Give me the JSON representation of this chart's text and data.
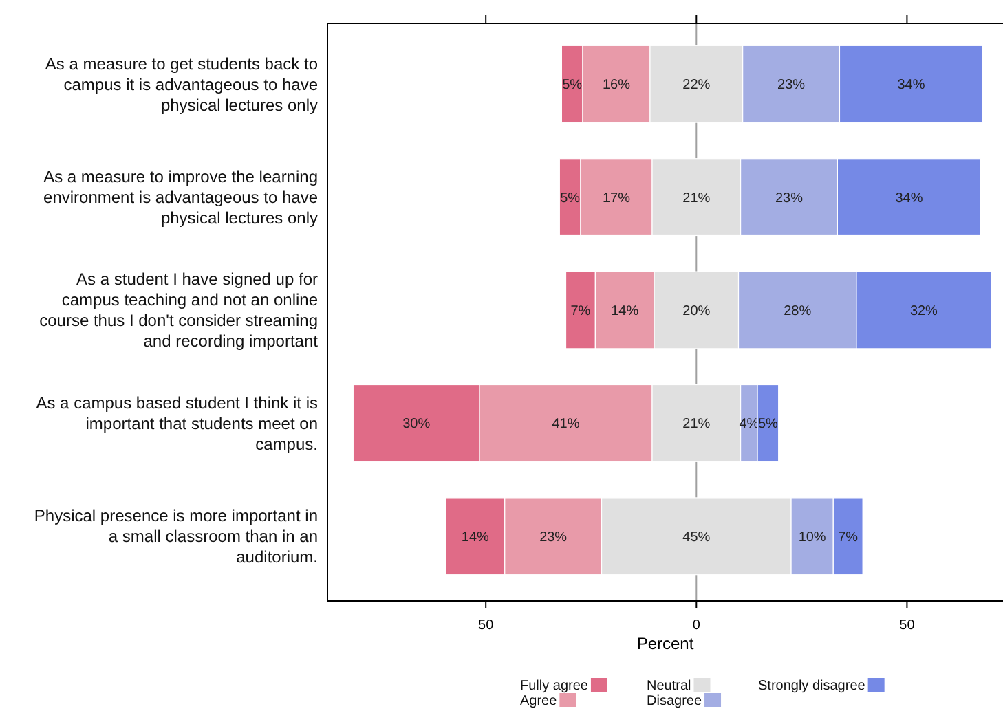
{
  "chart_data": {
    "type": "bar",
    "orientation": "horizontal",
    "xlabel": "Percent",
    "categories": [
      "As a measure to get students back to campus it is advantageous to have physical lectures only",
      "As a measure to improve the learning environment is advantageous to have physical lectures only",
      "As a student I have signed up for campus teaching and not an online course thus I don't consider streaming and recording important",
      "As a campus based student I think it is important that students meet on campus.",
      "Physical presence is more important in a small classroom than in an auditorium."
    ],
    "series": [
      {
        "name": "Fully agree",
        "color": "#e06b87",
        "base": [
          -32,
          -32.5,
          -31,
          -81.5,
          -59.5
        ],
        "values": [
          5,
          5,
          7,
          30,
          14
        ],
        "value_labels": [
          "5%",
          "5%",
          "7%",
          "30%",
          "14%"
        ]
      },
      {
        "name": "Agree",
        "color": "#e89aa9",
        "base": [
          -27,
          -27.5,
          -24,
          -51.5,
          -45.5
        ],
        "values": [
          16,
          17,
          14,
          41,
          23
        ],
        "value_labels": [
          "16%",
          "17%",
          "14%",
          "41%",
          "23%"
        ]
      },
      {
        "name": "Neutral",
        "color": "#e0e0e0",
        "base": [
          -11,
          -10.5,
          -10,
          -10.5,
          -22.5
        ],
        "values": [
          22,
          21,
          20,
          21,
          45
        ],
        "value_labels": [
          "22%",
          "21%",
          "20%",
          "21%",
          "45%"
        ]
      },
      {
        "name": "Disagree",
        "color": "#a3ade3",
        "base": [
          11,
          10.5,
          10,
          10.5,
          22.5
        ],
        "values": [
          23,
          23,
          28,
          4,
          10
        ],
        "value_labels": [
          "23%",
          "23%",
          "28%",
          "4%",
          "10%"
        ]
      },
      {
        "name": "Strongly disagree",
        "color": "#7589e6",
        "base": [
          34,
          33.5,
          38,
          14.5,
          32.5
        ],
        "values": [
          34,
          34,
          32,
          5,
          7
        ],
        "value_labels": [
          "34%",
          "34%",
          "32%",
          "5%",
          "7%"
        ]
      }
    ],
    "xlim": [
      -87.6,
      72.8
    ],
    "xticks": [
      {
        "value": -50,
        "label": "50"
      },
      0,
      50
    ],
    "ref_lines": [
      {
        "axis": "x",
        "value": 0,
        "color": "#a0a0a0"
      }
    ],
    "legend": "bottom"
  }
}
